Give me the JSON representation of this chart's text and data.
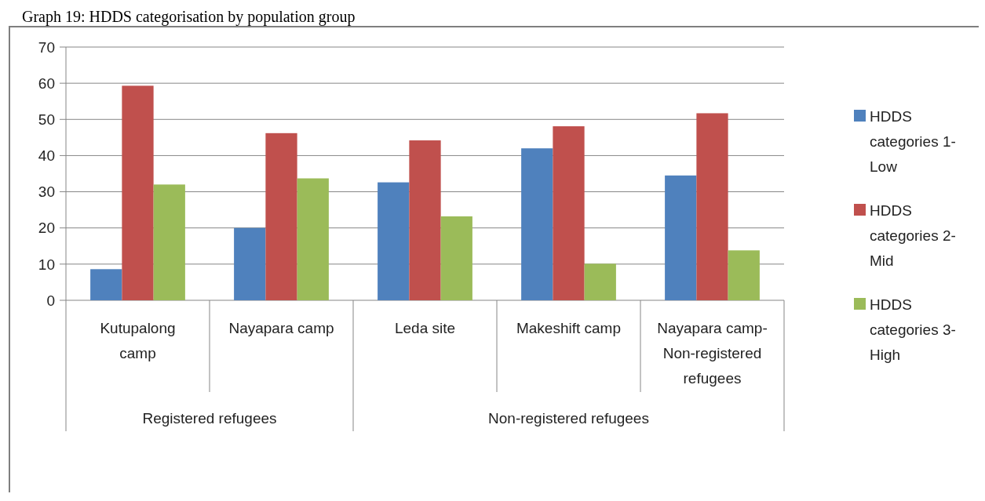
{
  "chart_data": {
    "type": "bar",
    "title": "Graph 19: HDDS categorisation by population group",
    "categories": [
      "Kutupalong camp",
      "Nayapara camp",
      "Leda site",
      "Makeshift camp",
      "Nayapara camp-Non-registered refugees"
    ],
    "series": [
      {
        "name": "HDDS categories 1-Low",
        "color": "#4f81bd",
        "values": [
          8.6,
          20,
          32.6,
          42,
          34.5
        ]
      },
      {
        "name": "HDDS categories 2-Mid",
        "color": "#c0504d",
        "values": [
          59.3,
          46.2,
          44.2,
          48.1,
          51.7
        ]
      },
      {
        "name": "HDDS categories 3-High",
        "color": "#9bbb59",
        "values": [
          32,
          33.7,
          23.2,
          10.1,
          13.8
        ]
      }
    ],
    "ylim": [
      0,
      70
    ],
    "yticks": [
      0,
      10,
      20,
      30,
      40,
      50,
      60,
      70
    ],
    "grid": "y",
    "legend": "right",
    "annotations": [
      "Registered refugees",
      "Non-registered refugees"
    ]
  }
}
